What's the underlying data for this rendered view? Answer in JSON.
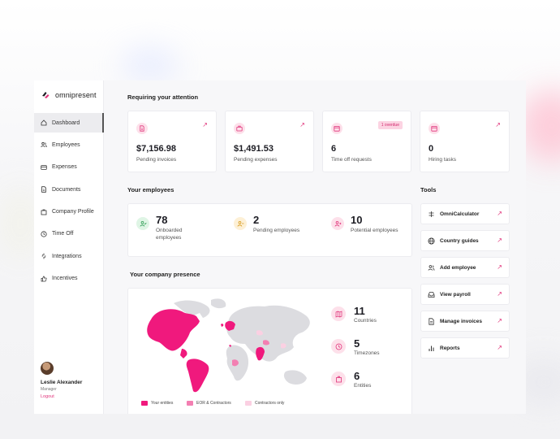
{
  "brand": {
    "name": "omnipresent",
    "accent": "#e0337a",
    "pink_soft": "#fde0ea"
  },
  "sidebar": {
    "items": [
      {
        "label": "Dashboard",
        "icon": "home-icon",
        "active": true
      },
      {
        "label": "Employees",
        "icon": "users-icon"
      },
      {
        "label": "Expenses",
        "icon": "credit-card-icon"
      },
      {
        "label": "Documents",
        "icon": "document-icon"
      },
      {
        "label": "Company Profile",
        "icon": "building-icon"
      },
      {
        "label": "Time Off",
        "icon": "clock-icon"
      },
      {
        "label": "Integrations",
        "icon": "plug-icon"
      },
      {
        "label": "Incentives",
        "icon": "thumbs-up-icon"
      }
    ],
    "user": {
      "name": "Leslie Alexander",
      "role": "Manager",
      "logout": "Logout"
    }
  },
  "attention": {
    "title": "Requiring your attention",
    "cards": [
      {
        "value": "$7,156.98",
        "label": "Pending invoices",
        "icon": "invoice-icon"
      },
      {
        "value": "$1,491.53",
        "label": "Pending expenses",
        "icon": "briefcase-icon"
      },
      {
        "value": "6",
        "label": "Time off requests",
        "badge": "1 overdue",
        "icon": "calendar-icon"
      },
      {
        "value": "0",
        "label": "Hiring tasks",
        "icon": "calendar-icon"
      }
    ]
  },
  "employees": {
    "title": "Your employees",
    "stats": [
      {
        "value": "78",
        "label": "Onboarded employees",
        "icon": "user-check-icon",
        "color": "#dff5e5"
      },
      {
        "value": "2",
        "label": "Pending employees",
        "icon": "user-minus-icon",
        "color": "#fdf0d6"
      },
      {
        "value": "10",
        "label": "Potential employees",
        "icon": "user-plus-icon",
        "color": "#fde0ea"
      }
    ]
  },
  "tools": {
    "title": "Tools",
    "items": [
      {
        "label": "OmniCalculator",
        "icon": "calculator-icon"
      },
      {
        "label": "Country guides",
        "icon": "globe-icon"
      },
      {
        "label": "Add employee",
        "icon": "users-icon"
      },
      {
        "label": "View payroll",
        "icon": "inbox-icon"
      },
      {
        "label": "Manage invoices",
        "icon": "document-icon"
      },
      {
        "label": "Reports",
        "icon": "bar-chart-icon"
      }
    ]
  },
  "presence": {
    "title": "Your company presence",
    "stats": [
      {
        "value": "11",
        "label": "Countries",
        "icon": "map-icon"
      },
      {
        "value": "5",
        "label": "Timezones",
        "icon": "clock-icon"
      },
      {
        "value": "6",
        "label": "Entities",
        "icon": "building-icon"
      }
    ],
    "legend": [
      {
        "label": "Your entities",
        "color": "#f0197d"
      },
      {
        "label": "EOR & Contractors",
        "color": "#f37fb2"
      },
      {
        "label": "Contractors only",
        "color": "#fbd0e2"
      }
    ]
  }
}
